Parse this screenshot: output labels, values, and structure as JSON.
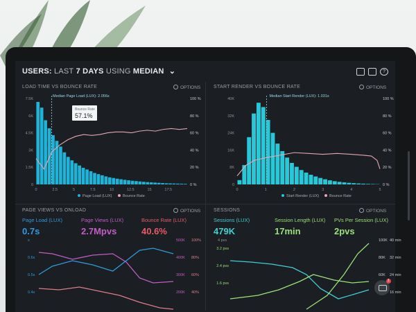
{
  "header": {
    "title_users": "USERS:",
    "title_last": "LAST",
    "title_7days": "7 DAYS",
    "title_using": "USING",
    "title_median": "MEDIAN",
    "chevron": "chevron-down-icon"
  },
  "header_icons": [
    "monitor-icon",
    "image-icon",
    "help-icon"
  ],
  "help_glyph": "?",
  "options_label": "OPTIONS",
  "panel1": {
    "title": "LOAD TIME VS BOUNCE RATE",
    "marker_label": "Median Page Load (LUX): 2.056s",
    "tooltip_label": "Bounce Rate",
    "tooltip_value": "57.1%",
    "y_left": [
      "7.5K",
      "6K",
      "4.5K",
      "3K",
      "1.5K",
      "0"
    ],
    "y_right": [
      "100 %",
      "80 %",
      "60 %",
      "40 %",
      "20 %",
      "0 %"
    ],
    "x_ticks": [
      "0",
      "2.5",
      "5",
      "7.5",
      "10",
      "12.5",
      "15",
      "17.5"
    ],
    "legend_a": "Page Load (LUX)",
    "legend_b": "Bounce Rate"
  },
  "panel2": {
    "title": "START RENDER VS BOUNCE RATE",
    "marker_label": "Median Start Render (LUX): 1.031s",
    "y_left": [
      "40K",
      "32K",
      "24K",
      "16K",
      "8K",
      "0"
    ],
    "y_right": [
      "100 %",
      "80 %",
      "60 %",
      "40 %",
      "20 %",
      "0 %"
    ],
    "x_ticks": [
      "0",
      "1",
      "2",
      "3",
      "4",
      "5"
    ],
    "legend_a": "Start Render (LUX)",
    "legend_b": "Bounce Rate"
  },
  "panel3": {
    "title": "PAGE VIEWS VS ONLOAD",
    "kpis": [
      {
        "label": "Page Load (LUX)",
        "value": "0.7s",
        "color": "#2f9be0"
      },
      {
        "label": "Page Views (LUX)",
        "value": "2.7Mpvs",
        "color": "#c45cc8"
      },
      {
        "label": "Bounce Rate (LUX)",
        "value": "40.6%",
        "color": "#e85a6a"
      }
    ],
    "y_left": [
      "s",
      "0.6s",
      "0.5s",
      "0.4s"
    ],
    "y_mid": [
      "500K",
      "400K",
      "300K",
      "200K"
    ],
    "y_right": [
      "100%",
      "80%",
      "60%",
      "40%"
    ]
  },
  "panel4": {
    "title": "SESSIONS",
    "kpis": [
      {
        "label": "Sessions (LUX)",
        "value": "479K",
        "color": "#3fd0d4"
      },
      {
        "label": "Session Length (LUX)",
        "value": "17min",
        "color": "#9be27a"
      },
      {
        "label": "PVs Per Session (LUX)",
        "value": "2pvs",
        "color": "#9be27a"
      }
    ],
    "kpi_sub": "4 pvs",
    "y_left": [
      "3.2 pvs",
      "2.4 pvs",
      "1.6 pvs"
    ],
    "y_mid": [
      "100K",
      "80K",
      "60K",
      "40K"
    ],
    "y_right": [
      "40 min",
      "32 min",
      "24 min",
      "16 min"
    ]
  },
  "chat_badge": "1",
  "colors": {
    "bar": "#1fb3d8",
    "bar_cyan": "#28c8d8",
    "bounce": "#e8a6b0",
    "marker": "#9ad8e8",
    "blue_line": "#2f9be0",
    "pink_line": "#c45cc8",
    "salmon_line": "#e07c88",
    "green_line": "#9be27a",
    "cyan_line": "#3fd0d4"
  }
}
